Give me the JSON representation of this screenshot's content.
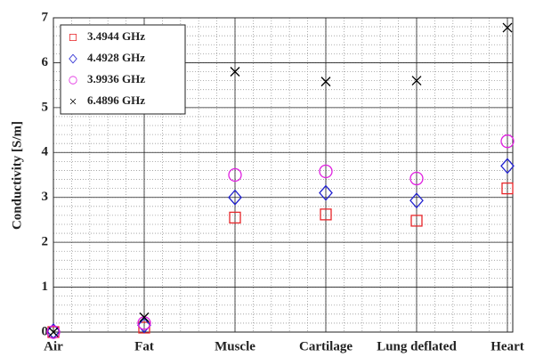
{
  "chart_data": {
    "type": "scatter",
    "y_label": "Conductivity [S/m]",
    "categories": [
      "Air",
      "Fat",
      "Muscle",
      "Cartilage",
      "Lung deflated",
      "Heart"
    ],
    "ylim": [
      0,
      7
    ],
    "yticks": [
      0,
      1,
      2,
      3,
      4,
      5,
      6,
      7
    ],
    "grid": true,
    "legend": "upper-left",
    "series": [
      {
        "name": "3.4944 GHz",
        "color": "#e8262a",
        "marker": "square",
        "values": [
          0,
          0.1,
          2.55,
          2.62,
          2.48,
          3.2
        ]
      },
      {
        "name": "4.4928 GHz",
        "color": "#2020d0",
        "marker": "diamond",
        "values": [
          0.02,
          0.15,
          3.0,
          3.1,
          2.93,
          3.7
        ]
      },
      {
        "name": "3.9936 GHz",
        "color": "#e020e0",
        "marker": "circle",
        "values": [
          0,
          0.2,
          3.5,
          3.58,
          3.42,
          4.25
        ]
      },
      {
        "name": "6.4896 GHz",
        "color": "#000000",
        "marker": "x",
        "values": [
          0,
          0.33,
          5.8,
          5.58,
          5.6,
          6.78
        ]
      }
    ]
  }
}
